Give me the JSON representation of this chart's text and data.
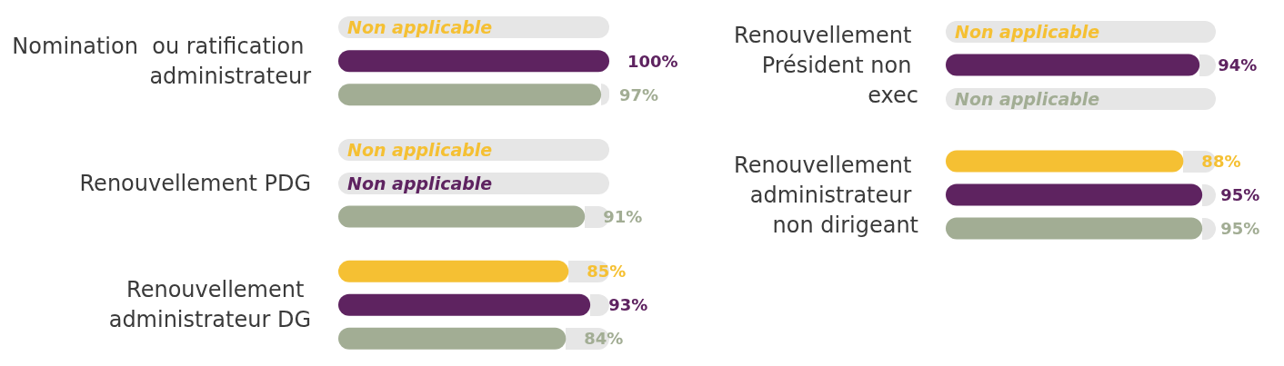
{
  "chart_data": [
    {
      "type": "bar",
      "orientation": "horizontal",
      "categories": [
        "Nomination  ou ratification administrateur",
        "Renouvellement PDG",
        "Renouvellement administrateur DG"
      ],
      "xlim": [
        0,
        100
      ],
      "tick_labels": "y",
      "series": [
        {
          "color": "#f5c033",
          "values": [
            null,
            null,
            85
          ],
          "value_labels": [
            "Non applicable",
            "Non applicable",
            "85%"
          ]
        },
        {
          "color": "#5e2360",
          "values": [
            100,
            null,
            93
          ],
          "value_labels": [
            "100%",
            "Non applicable",
            "93%"
          ]
        },
        {
          "color": "#a2ad94",
          "values": [
            97,
            91,
            84
          ],
          "value_labels": [
            "97%",
            "91%",
            "84%"
          ]
        }
      ]
    },
    {
      "type": "bar",
      "orientation": "horizontal",
      "categories": [
        "Renouvellement Président non exec",
        "Renouvellement administrateur non dirigeant"
      ],
      "xlim": [
        0,
        100
      ],
      "tick_labels": "y",
      "series": [
        {
          "color": "#f5c033",
          "values": [
            null,
            88
          ],
          "value_labels": [
            "Non applicable",
            "88%"
          ]
        },
        {
          "color": "#5e2360",
          "values": [
            94,
            95
          ],
          "value_labels": [
            "94%",
            "95%"
          ]
        },
        {
          "color": "#a2ad94",
          "values": [
            null,
            95
          ],
          "value_labels": [
            "Non applicable",
            "95%"
          ]
        }
      ]
    }
  ]
}
